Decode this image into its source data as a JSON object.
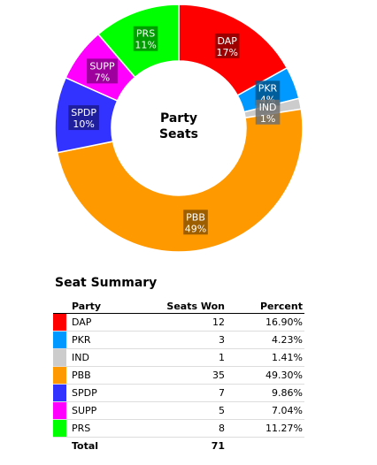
{
  "chart_data": {
    "type": "pie",
    "center_title_lines": [
      "Party",
      "Seats"
    ],
    "slices": [
      {
        "party": "DAP",
        "seats": 12,
        "percent": 17,
        "color": "#ff0000"
      },
      {
        "party": "PKR",
        "seats": 3,
        "percent": 4,
        "color": "#0099ff"
      },
      {
        "party": "IND",
        "seats": 1,
        "percent": 1,
        "color": "#cccccc"
      },
      {
        "party": "PBB",
        "seats": 35,
        "percent": 49,
        "color": "#ff9900"
      },
      {
        "party": "SPDP",
        "seats": 7,
        "percent": 10,
        "color": "#3333ff"
      },
      {
        "party": "SUPP",
        "seats": 5,
        "percent": 7,
        "color": "#ff00ff"
      },
      {
        "party": "PRS",
        "seats": 8,
        "percent": 11,
        "color": "#00ff00"
      }
    ]
  },
  "summary": {
    "title": "Seat Summary",
    "headers": {
      "party": "Party",
      "seats": "Seats Won",
      "percent": "Percent"
    },
    "rows": [
      {
        "party": "DAP",
        "seats": "12",
        "percent": "16.90%",
        "color": "#ff0000"
      },
      {
        "party": "PKR",
        "seats": "3",
        "percent": "4.23%",
        "color": "#0099ff"
      },
      {
        "party": "IND",
        "seats": "1",
        "percent": "1.41%",
        "color": "#cccccc"
      },
      {
        "party": "PBB",
        "seats": "35",
        "percent": "49.30%",
        "color": "#ff9900"
      },
      {
        "party": "SPDP",
        "seats": "7",
        "percent": "9.86%",
        "color": "#3333ff"
      },
      {
        "party": "SUPP",
        "seats": "5",
        "percent": "7.04%",
        "color": "#ff00ff"
      },
      {
        "party": "PRS",
        "seats": "8",
        "percent": "11.27%",
        "color": "#00ff00"
      }
    ],
    "total_label": "Total",
    "total_seats": "71"
  }
}
